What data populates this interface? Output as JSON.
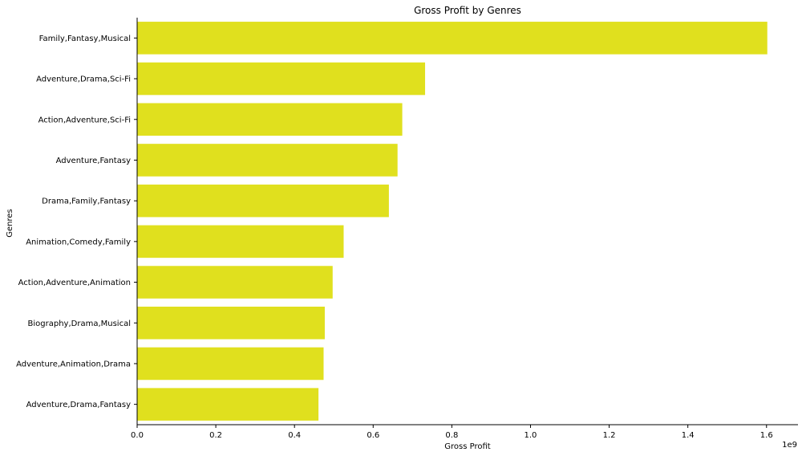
{
  "chart_data": {
    "type": "bar",
    "orientation": "horizontal",
    "title": "Gross Profit by Genres",
    "xlabel": "Gross Profit",
    "ylabel": "Genres",
    "x_offset_label": "1e9",
    "xlim": [
      0,
      1.68
    ],
    "x_ticks": [
      "0.0",
      "0.2",
      "0.4",
      "0.6",
      "0.8",
      "1.0",
      "1.2",
      "1.4",
      "1.6"
    ],
    "bar_color": "#e0e01e",
    "grid": false,
    "categories": [
      "Family,Fantasy,Musical",
      "Adventure,Drama,Sci-Fi",
      "Action,Adventure,Sci-Fi",
      "Adventure,Fantasy",
      "Drama,Family,Fantasy",
      "Animation,Comedy,Family",
      "Action,Adventure,Animation",
      "Biography,Drama,Musical",
      "Adventure,Animation,Drama",
      "Adventure,Drama,Fantasy"
    ],
    "values": [
      1.602,
      0.732,
      0.674,
      0.662,
      0.64,
      0.525,
      0.497,
      0.477,
      0.474,
      0.461
    ]
  }
}
